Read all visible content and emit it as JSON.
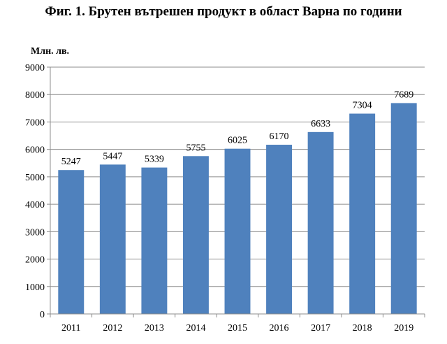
{
  "title": "Фиг. 1. Брутен вътрешен продукт в област Варна по години",
  "chart_data": {
    "type": "bar",
    "title": "Фиг. 1. Брутен вътрешен продукт в област Варна по години",
    "ylabel": "Млн. лв.",
    "xlabel": "",
    "categories": [
      "2011",
      "2012",
      "2013",
      "2014",
      "2015",
      "2016",
      "2017",
      "2018",
      "2019"
    ],
    "values": [
      5247,
      5447,
      5339,
      5755,
      6025,
      6170,
      6633,
      7304,
      7689
    ],
    "data_labels": [
      "5247",
      "5447",
      "5339",
      "5755",
      "6025",
      "6170",
      "6633",
      "7304",
      "7689"
    ],
    "ylim": [
      0,
      9000
    ],
    "yticks": [
      0,
      1000,
      2000,
      3000,
      4000,
      5000,
      6000,
      7000,
      8000,
      9000
    ],
    "ytick_labels": [
      "0",
      "1000",
      "2000",
      "3000",
      "4000",
      "5000",
      "6000",
      "7000",
      "8000",
      "9000"
    ],
    "grid": "horizontal",
    "legend": "none",
    "bar_color": "#4F81BD",
    "grid_color": "#8C8C8C"
  }
}
